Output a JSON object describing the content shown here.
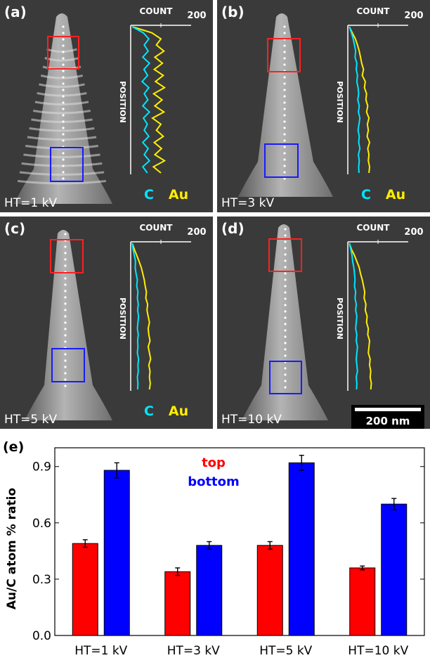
{
  "panels": [
    {
      "id": "a",
      "tag": "(a)",
      "ht_label": "HT=1 kV",
      "count_label": "COUNT",
      "count_max": "200",
      "position_label": "POSITION",
      "c_label": "C",
      "au_label": "Au",
      "c_counts": [
        5,
        42,
        60,
        45,
        58,
        40,
        62,
        44,
        56,
        38,
        60,
        45,
        57,
        40,
        62,
        42,
        55,
        45,
        60,
        40,
        58,
        45,
        62,
        40,
        55
      ],
      "au_counts": [
        5,
        70,
        100,
        85,
        110,
        80,
        105,
        78,
        108,
        82,
        112,
        76,
        104,
        80,
        110,
        72,
        100,
        85,
        108,
        78,
        102,
        80,
        112,
        75,
        100
      ]
    },
    {
      "id": "b",
      "tag": "(b)",
      "ht_label": "HT=3 kV",
      "count_label": "COUNT",
      "count_max": "200",
      "position_label": "POSITION",
      "c_label": "C",
      "au_label": "Au",
      "c_counts": [
        5,
        12,
        18,
        22,
        26,
        24,
        30,
        28,
        32,
        30,
        34,
        36,
        33,
        38,
        35,
        40,
        37,
        34,
        38,
        36,
        40,
        35,
        38,
        36,
        37
      ],
      "au_counts": [
        5,
        15,
        25,
        32,
        38,
        42,
        46,
        52,
        48,
        58,
        55,
        62,
        60,
        66,
        62,
        70,
        65,
        68,
        64,
        72,
        66,
        70,
        68,
        72,
        70
      ]
    },
    {
      "id": "c",
      "tag": "(c)",
      "ht_label": "HT=5 kV",
      "count_label": "COUNT",
      "count_max": "200",
      "position_label": "POSITION",
      "c_label": "C",
      "au_label": "Au",
      "c_counts": [
        5,
        8,
        12,
        16,
        15,
        18,
        22,
        20,
        24,
        22,
        25,
        23,
        26,
        24,
        22,
        25,
        23,
        24,
        22,
        26,
        24,
        25,
        22,
        24,
        23
      ],
      "au_counts": [
        5,
        12,
        20,
        28,
        35,
        40,
        45,
        48,
        52,
        50,
        56,
        54,
        58,
        62,
        58,
        60,
        64,
        58,
        62,
        66,
        60,
        64,
        62,
        65,
        62
      ]
    },
    {
      "id": "d",
      "tag": "(d)",
      "ht_label": "HT=10 kV",
      "count_label": "COUNT",
      "count_max": "200",
      "position_label": "POSITION",
      "c_label": "C",
      "au_label": "Au",
      "c_counts": [
        5,
        10,
        14,
        16,
        20,
        22,
        24,
        22,
        26,
        24,
        28,
        26,
        30,
        28,
        26,
        30,
        28,
        32,
        30,
        28,
        30,
        32,
        28,
        30,
        29
      ],
      "au_counts": [
        5,
        12,
        22,
        30,
        38,
        42,
        48,
        52,
        56,
        54,
        60,
        58,
        64,
        62,
        68,
        66,
        72,
        70,
        68,
        74,
        72,
        76,
        74,
        78,
        76
      ]
    }
  ],
  "scalebar": {
    "label": "200 nm"
  },
  "chart_data": {
    "type": "bar",
    "panel_tag": "(e)",
    "title": "",
    "xlabel": "",
    "ylabel": "Au/C  atom % ratio",
    "categories": [
      "HT=1 kV",
      "HT=3 kV",
      "HT=5 kV",
      "HT=10 kV"
    ],
    "series": [
      {
        "name": "top",
        "color": "#ff0000",
        "values": [
          0.49,
          0.34,
          0.48,
          0.36
        ],
        "errors": [
          0.02,
          0.02,
          0.02,
          0.01
        ]
      },
      {
        "name": "bottom",
        "color": "#0000ff",
        "values": [
          0.88,
          0.48,
          0.92,
          0.7
        ],
        "errors": [
          0.04,
          0.02,
          0.04,
          0.03
        ]
      }
    ],
    "ylim": [
      0.0,
      1.0
    ],
    "yticks": [
      0.0,
      0.3,
      0.6,
      0.9
    ],
    "ytick_labels": [
      "0.0",
      "0.3",
      "0.6",
      "0.9"
    ],
    "legend_position": "top-center",
    "grid": false
  },
  "colors": {
    "carbon_line": "#00e5ff",
    "gold_line": "#ffee00",
    "top_box": "#ff2020",
    "bottom_box": "#1a1aff",
    "panel_bg": "#3a3a3a"
  }
}
